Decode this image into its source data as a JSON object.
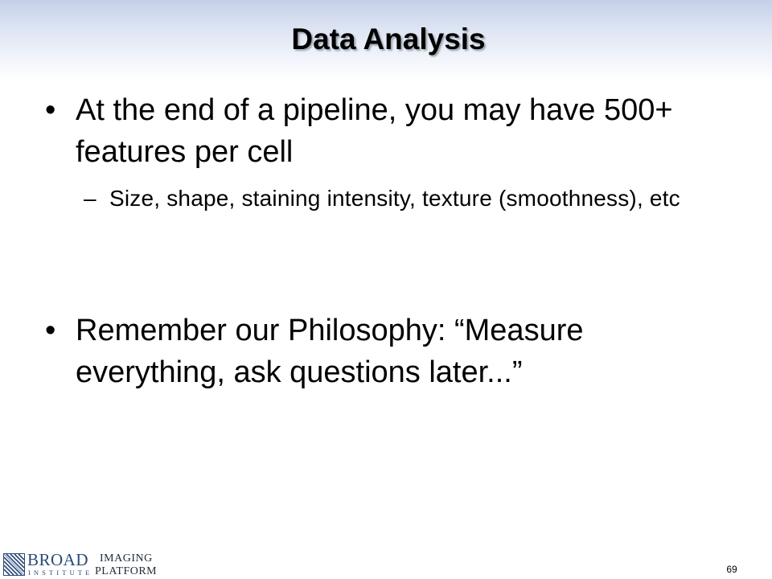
{
  "slide": {
    "title": "Data Analysis",
    "bullets": [
      {
        "marker": "•",
        "text": "At the end of a pipeline, you may have 500+ features per cell",
        "sub_bullets": [
          {
            "marker": "–",
            "text": "Size, shape, staining intensity, texture (smoothness), etc"
          }
        ]
      },
      {
        "marker": "•",
        "text": "Remember our Philosophy: “Measure everything, ask questions later...”"
      }
    ],
    "page_number": "69"
  },
  "footer": {
    "logo": {
      "icon": "broad-institute-logo-icon",
      "line1": "BROAD",
      "line2": "INSTITUTE",
      "line3": "IMAGING",
      "line4": "PLATFORM",
      "color": "#2a4a78"
    }
  }
}
